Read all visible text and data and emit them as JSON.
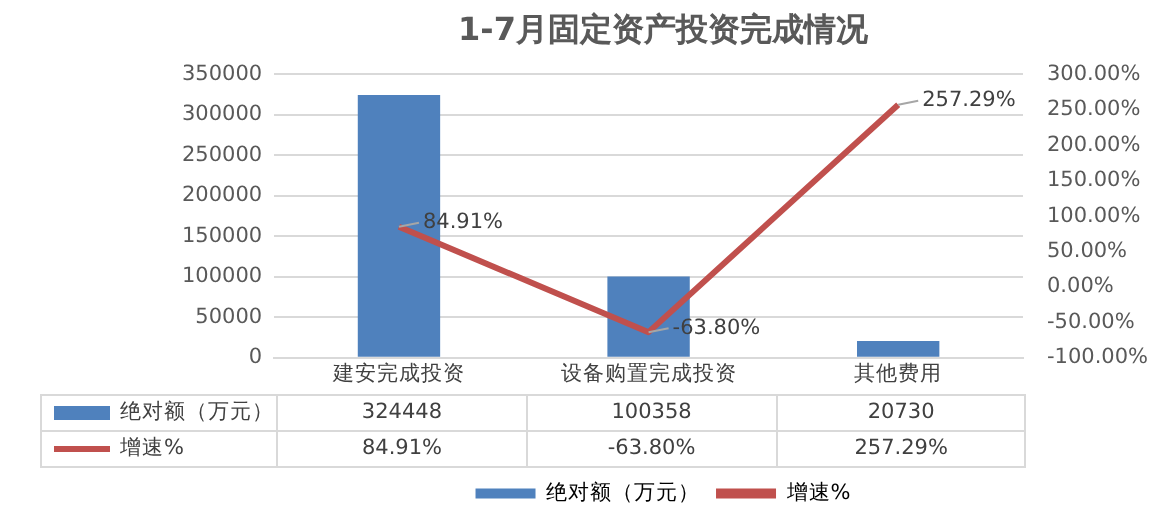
{
  "chart_data": {
    "type": "bar",
    "title": "1-7月固定资产投资完成情况",
    "categories": [
      "建安完成投资",
      "设备购置完成投资",
      "其他费用"
    ],
    "series": [
      {
        "name": "绝对额（万元）",
        "color": "#4f81bd",
        "values": [
          324448,
          100358,
          20730
        ],
        "value_labels": [
          "324448",
          "100358",
          "20730"
        ]
      },
      {
        "name": "增速%",
        "type": "line",
        "axis": "y2",
        "color": "#c0504d",
        "values": [
          84.91,
          -63.8,
          257.29
        ],
        "value_labels": [
          "84.91%",
          "-63.80%",
          "257.29%"
        ]
      }
    ],
    "ylim": [
      0,
      350000
    ],
    "yticks": [
      0,
      50000,
      100000,
      150000,
      200000,
      250000,
      300000,
      350000
    ],
    "y2lim": [
      -100,
      300
    ],
    "y2ticks": [
      {
        "value": -100,
        "label": "-100.00%"
      },
      {
        "value": -50,
        "label": "-50.00%"
      },
      {
        "value": 0,
        "label": "0.00%"
      },
      {
        "value": 50,
        "label": "50.00%"
      },
      {
        "value": 100,
        "label": "100.00%"
      },
      {
        "value": 150,
        "label": "150.00%"
      },
      {
        "value": 200,
        "label": "200.00%"
      },
      {
        "value": 250,
        "label": "250.00%"
      },
      {
        "value": 300,
        "label": "300.00%"
      }
    ],
    "grid": "y",
    "legend": "bottom",
    "marker": "none",
    "line_style": "solid"
  }
}
